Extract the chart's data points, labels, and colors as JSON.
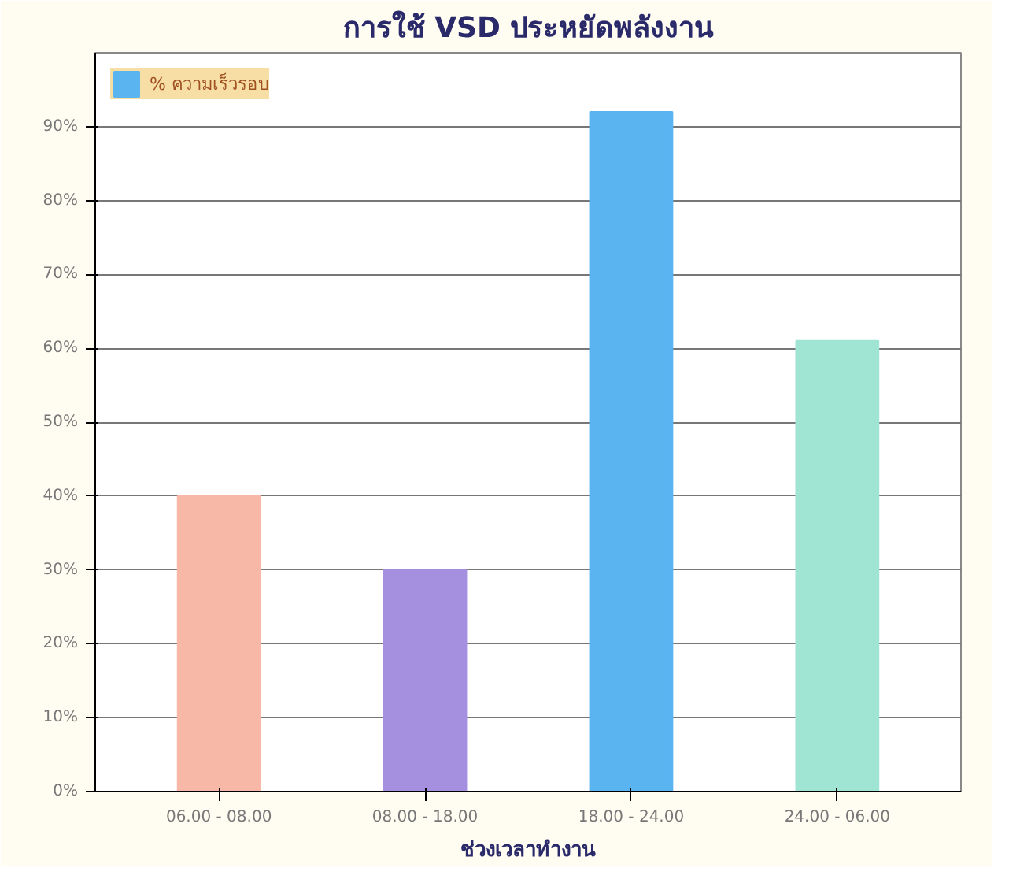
{
  "chart_data": {
    "type": "bar",
    "title": "การใช้ VSD ประหยัดพลังงาน",
    "xlabel": "ช่วงเวลาทำงาน",
    "categories": [
      "06.00 - 08.00",
      "08.00 - 18.00",
      "18.00 - 24.00",
      "24.00 - 06.00"
    ],
    "series": [
      {
        "name": "% ความเร็วรอบ",
        "colors": [
          "#f7b8a8",
          "#a590e0",
          "#5ab4f0",
          "#a0e4d4"
        ],
        "values": [
          40,
          30,
          92,
          61
        ]
      }
    ],
    "ylim": [
      0,
      100
    ],
    "yticks": [
      {
        "value": 0,
        "label": "0%"
      },
      {
        "value": 10,
        "label": "10%"
      },
      {
        "value": 20,
        "label": "20%"
      },
      {
        "value": 30,
        "label": "30%"
      },
      {
        "value": 40,
        "label": "40%"
      },
      {
        "value": 50,
        "label": "50%"
      },
      {
        "value": 60,
        "label": "60%"
      },
      {
        "value": 70,
        "label": "70%"
      },
      {
        "value": 80,
        "label": "80%"
      },
      {
        "value": 90,
        "label": "90%"
      }
    ],
    "grid": "y",
    "legend": "top left"
  }
}
